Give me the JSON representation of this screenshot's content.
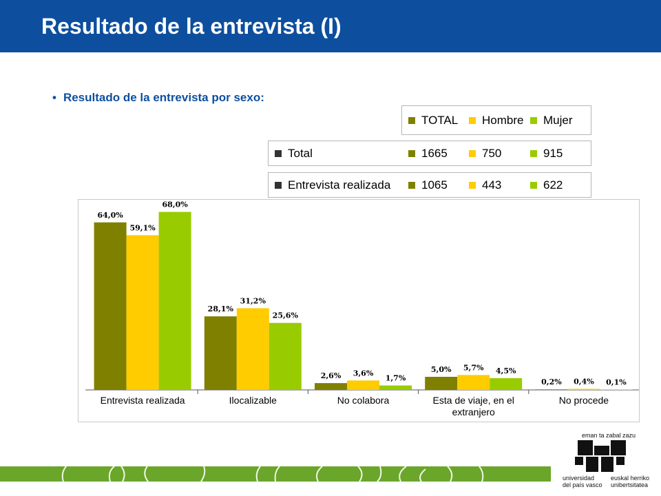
{
  "header": {
    "title": "Resultado de la entrevista (I)"
  },
  "subtitle": {
    "bullet": "•",
    "text": "Resultado de la entrevista por sexo:"
  },
  "legend": {
    "row1": [
      {
        "label": "TOTAL",
        "color": "#808000"
      },
      {
        "label": "Hombre",
        "color": "#ffcc00"
      },
      {
        "label": "Mujer",
        "color": "#99cc00"
      }
    ],
    "row2": [
      {
        "label": "Total",
        "color": "#333333"
      },
      {
        "label": "1665",
        "color": "#808000"
      },
      {
        "label": "750",
        "color": "#ffcc00"
      },
      {
        "label": "915",
        "color": "#99cc00"
      }
    ],
    "row3": [
      {
        "label": "Entrevista realizada",
        "color": "#333333"
      },
      {
        "label": "1065",
        "color": "#808000"
      },
      {
        "label": "443",
        "color": "#ffcc00"
      },
      {
        "label": "622",
        "color": "#99cc00"
      }
    ]
  },
  "chart_data": {
    "type": "bar",
    "categories": [
      "Entrevista realizada",
      "Ilocalizable",
      "No colabora",
      "Esta de viaje, en el extranjero",
      "No procede"
    ],
    "category_lines": [
      [
        "Entrevista realizada"
      ],
      [
        "Ilocalizable"
      ],
      [
        "No colabora"
      ],
      [
        "Esta de viaje, en el",
        "extranjero"
      ],
      [
        "No procede"
      ]
    ],
    "series": [
      {
        "name": "TOTAL",
        "color": "#808000",
        "values": [
          64.0,
          28.1,
          2.6,
          5.0,
          0.2
        ],
        "labels": [
          "64,0%",
          "28,1%",
          "2,6%",
          "5,0%",
          "0,2%"
        ]
      },
      {
        "name": "Hombre",
        "color": "#ffcc00",
        "values": [
          59.1,
          31.2,
          3.6,
          5.7,
          0.4
        ],
        "labels": [
          "59,1%",
          "31,2%",
          "3,6%",
          "5,7%",
          "0,4%"
        ]
      },
      {
        "name": "Mujer",
        "color": "#99cc00",
        "values": [
          68.0,
          25.6,
          1.7,
          4.5,
          0.1
        ],
        "labels": [
          "68,0%",
          "25,6%",
          "1,7%",
          "4,5%",
          "0,1%"
        ]
      }
    ],
    "ylim": [
      0,
      75
    ],
    "grid": false
  },
  "logo": {
    "tagline": "eman ta zabal zazu",
    "left_line1": "universidad",
    "left_line2": "del país vasco",
    "right_line1": "euskal herriko",
    "right_line2": "unibertsitatea"
  },
  "colors": {
    "header": "#0d4f9e",
    "footer": "#6aa629"
  }
}
